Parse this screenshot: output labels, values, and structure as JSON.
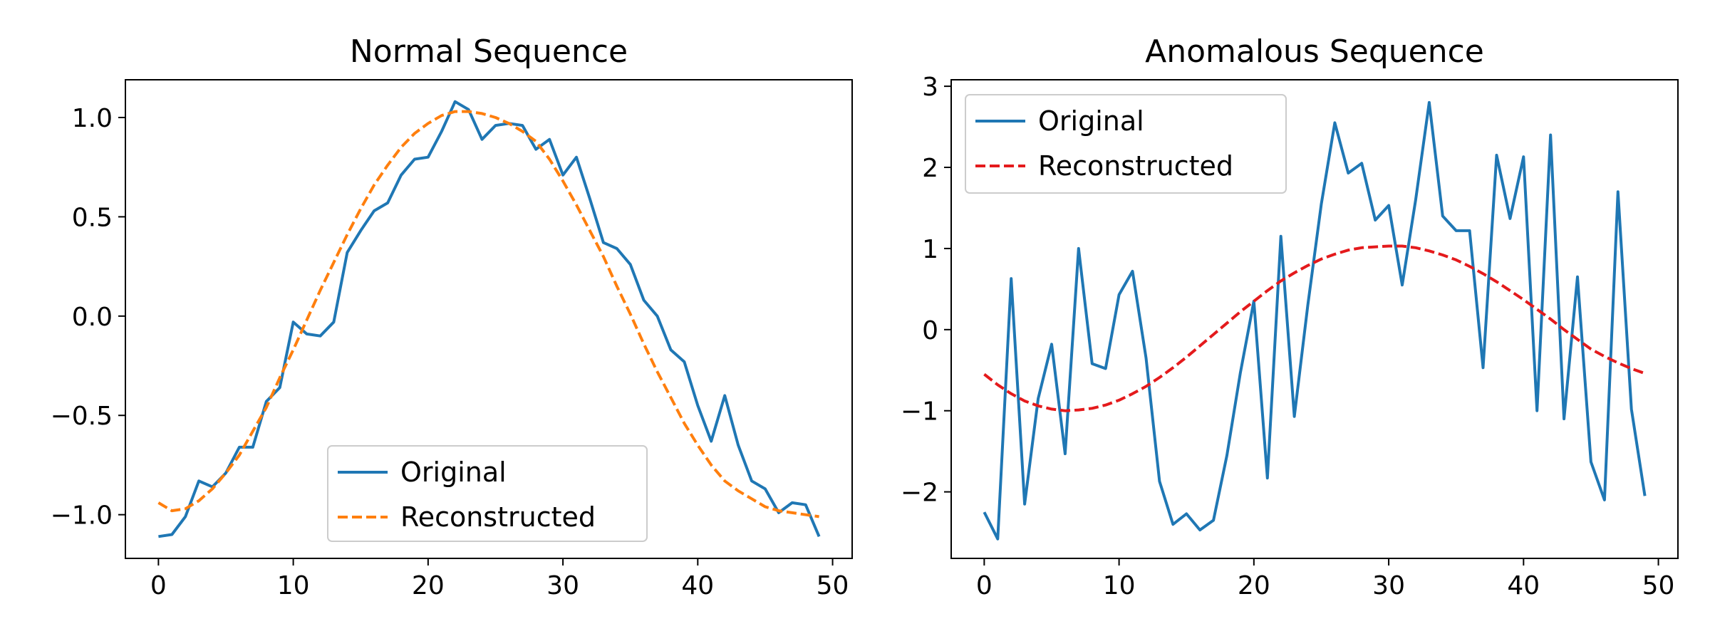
{
  "chart_data": [
    {
      "type": "line",
      "title": "Normal Sequence",
      "xlabel": "",
      "ylabel": "",
      "xlim": [
        -2.45,
        51.45
      ],
      "ylim": [
        -1.22,
        1.19
      ],
      "xticks": [
        0,
        10,
        20,
        30,
        40,
        50
      ],
      "yticks": [
        -1.0,
        -0.5,
        0.0,
        0.5,
        1.0
      ],
      "ytick_labels": [
        "−1.0",
        "−0.5",
        "0.0",
        "0.5",
        "1.0"
      ],
      "legend_position": "lower-right",
      "grid": false,
      "x": [
        0,
        1,
        2,
        3,
        4,
        5,
        6,
        7,
        8,
        9,
        10,
        11,
        12,
        13,
        14,
        15,
        16,
        17,
        18,
        19,
        20,
        21,
        22,
        23,
        24,
        25,
        26,
        27,
        28,
        29,
        30,
        31,
        32,
        33,
        34,
        35,
        36,
        37,
        38,
        39,
        40,
        41,
        42,
        43,
        44,
        45,
        46,
        47,
        48,
        49
      ],
      "series": [
        {
          "name": "Original",
          "color": "#1f77b4",
          "style": "solid",
          "values": [
            -1.11,
            -1.1,
            -1.01,
            -0.83,
            -0.86,
            -0.79,
            -0.66,
            -0.66,
            -0.43,
            -0.36,
            -0.03,
            -0.09,
            -0.1,
            -0.03,
            0.32,
            0.43,
            0.53,
            0.57,
            0.71,
            0.79,
            0.8,
            0.93,
            1.08,
            1.04,
            0.89,
            0.96,
            0.97,
            0.96,
            0.84,
            0.89,
            0.71,
            0.8,
            0.59,
            0.37,
            0.34,
            0.26,
            0.08,
            0.0,
            -0.17,
            -0.23,
            -0.45,
            -0.63,
            -0.4,
            -0.65,
            -0.83,
            -0.87,
            -0.99,
            -0.94,
            -0.95,
            -1.11
          ]
        },
        {
          "name": "Reconstructed",
          "color": "#ff7f0e",
          "style": "dashed",
          "values": [
            -0.94,
            -0.98,
            -0.97,
            -0.93,
            -0.87,
            -0.79,
            -0.7,
            -0.58,
            -0.46,
            -0.31,
            -0.17,
            -0.02,
            0.13,
            0.27,
            0.41,
            0.54,
            0.66,
            0.76,
            0.85,
            0.92,
            0.97,
            1.01,
            1.03,
            1.03,
            1.02,
            1.0,
            0.97,
            0.93,
            0.88,
            0.79,
            0.68,
            0.56,
            0.43,
            0.3,
            0.15,
            0.01,
            -0.14,
            -0.28,
            -0.41,
            -0.54,
            -0.65,
            -0.75,
            -0.83,
            -0.88,
            -0.92,
            -0.96,
            -0.98,
            -0.99,
            -1.0,
            -1.01
          ]
        }
      ]
    },
    {
      "type": "line",
      "title": "Anomalous Sequence",
      "xlabel": "",
      "ylabel": "",
      "xlim": [
        -2.45,
        51.45
      ],
      "ylim": [
        -2.82,
        3.08
      ],
      "xticks": [
        0,
        10,
        20,
        30,
        40,
        50
      ],
      "yticks": [
        -2,
        -1,
        0,
        1,
        2,
        3
      ],
      "ytick_labels": [
        "−2",
        "−1",
        "0",
        "1",
        "2",
        "3"
      ],
      "legend_position": "upper-left",
      "grid": false,
      "x": [
        0,
        1,
        2,
        3,
        4,
        5,
        6,
        7,
        8,
        9,
        10,
        11,
        12,
        13,
        14,
        15,
        16,
        17,
        18,
        19,
        20,
        21,
        22,
        23,
        24,
        25,
        26,
        27,
        28,
        29,
        30,
        31,
        32,
        33,
        34,
        35,
        36,
        37,
        38,
        39,
        40,
        41,
        42,
        43,
        44,
        45,
        46,
        47,
        48,
        49
      ],
      "series": [
        {
          "name": "Original",
          "color": "#1f77b4",
          "style": "solid",
          "values": [
            -2.25,
            -2.58,
            0.63,
            -2.15,
            -0.85,
            -0.18,
            -1.53,
            1.0,
            -0.42,
            -0.48,
            0.43,
            0.72,
            -0.35,
            -1.87,
            -2.4,
            -2.27,
            -2.47,
            -2.35,
            -1.55,
            -0.53,
            0.35,
            -1.83,
            1.15,
            -1.07,
            0.3,
            1.55,
            2.55,
            1.93,
            2.05,
            1.35,
            1.53,
            0.55,
            1.6,
            2.8,
            1.4,
            1.22,
            1.22,
            -0.47,
            2.15,
            1.37,
            2.13,
            -1.0,
            2.4,
            -1.1,
            0.65,
            -1.63,
            -2.1,
            1.7,
            -0.98,
            -2.05
          ]
        },
        {
          "name": "Reconstructed",
          "color": "#e41a1c",
          "style": "dashed",
          "values": [
            -0.55,
            -0.68,
            -0.79,
            -0.88,
            -0.94,
            -0.98,
            -1.0,
            -0.99,
            -0.97,
            -0.93,
            -0.87,
            -0.79,
            -0.7,
            -0.59,
            -0.47,
            -0.34,
            -0.2,
            -0.06,
            0.08,
            0.22,
            0.35,
            0.48,
            0.6,
            0.7,
            0.79,
            0.87,
            0.93,
            0.98,
            1.01,
            1.02,
            1.03,
            1.03,
            1.01,
            0.97,
            0.92,
            0.86,
            0.78,
            0.69,
            0.59,
            0.48,
            0.37,
            0.25,
            0.13,
            0.0,
            -0.12,
            -0.24,
            -0.33,
            -0.41,
            -0.48,
            -0.54
          ]
        }
      ]
    }
  ]
}
